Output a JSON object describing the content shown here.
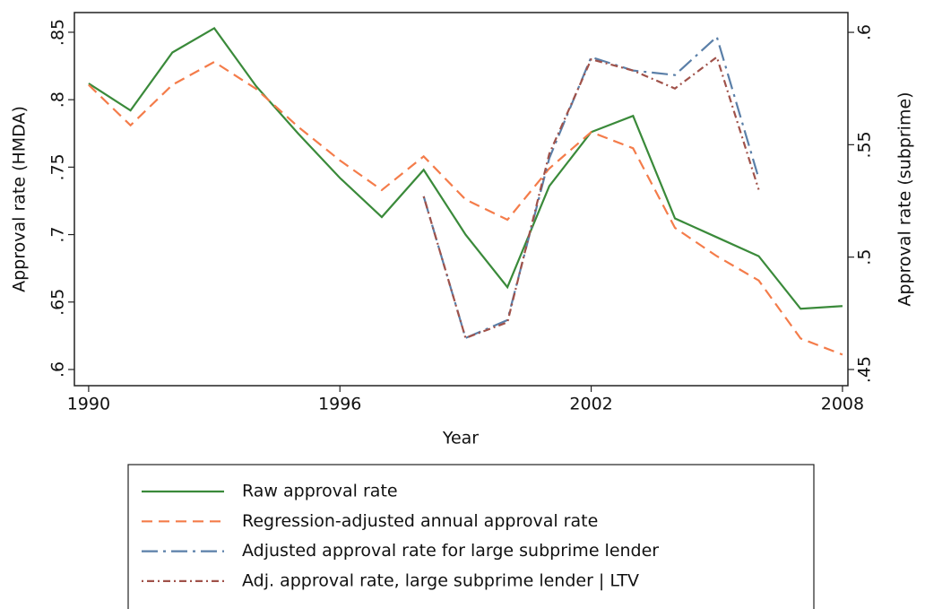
{
  "chart_data": {
    "type": "line",
    "x_label": "Year",
    "y_label": "Approval rate (HMDA)",
    "y2_label": "Approval rate (subprime)",
    "x": [
      1990,
      1991,
      1992,
      1993,
      1994,
      1995,
      1996,
      1997,
      1998,
      1999,
      2000,
      2001,
      2002,
      2003,
      2004,
      2005,
      2006,
      2007,
      2008
    ],
    "xlim": [
      1989.66,
      2008.13
    ],
    "xticks": [
      1990,
      1996,
      2002,
      2008
    ],
    "ylim": [
      0.588,
      0.8646
    ],
    "yticks": [
      {
        "value": 0.6,
        "label": ".6"
      },
      {
        "value": 0.65,
        "label": ".65"
      },
      {
        "value": 0.7,
        "label": ".7"
      },
      {
        "value": 0.75,
        "label": ".75"
      },
      {
        "value": 0.8,
        "label": ".8"
      },
      {
        "value": 0.85,
        "label": ".85"
      }
    ],
    "y2lim": [
      0.4428,
      0.6088
    ],
    "y2ticks": [
      {
        "value": 0.45,
        "label": ".45"
      },
      {
        "value": 0.5,
        "label": ".5"
      },
      {
        "value": 0.55,
        "label": ".55"
      },
      {
        "value": 0.6,
        "label": ".6"
      }
    ],
    "series": [
      {
        "name": "Raw approval rate",
        "color": "#3a8a3a",
        "dash": "none",
        "values": [
          0.812,
          0.792,
          0.835,
          0.853,
          0.81,
          0.775,
          0.742,
          0.713,
          0.748,
          0.7,
          0.661,
          0.736,
          0.776,
          0.788,
          0.712,
          0.698,
          0.684,
          0.645,
          0.647
        ]
      },
      {
        "name": "Regression-adjusted annual approval rate",
        "color": "#f47c4a",
        "dash": "12,7",
        "values": [
          0.811,
          0.781,
          0.811,
          0.828,
          0.808,
          0.78,
          0.755,
          0.733,
          0.758,
          0.726,
          0.711,
          0.749,
          0.776,
          0.764,
          0.705,
          0.684,
          0.666,
          0.623,
          0.611
        ]
      },
      {
        "name": "Adjusted approval rate for large subprime lender",
        "color": "#5a7fa8",
        "dash": "18,6,3,6",
        "axis": "y2",
        "values": [
          null,
          null,
          null,
          null,
          null,
          null,
          null,
          null,
          0.527,
          0.464,
          0.472,
          0.544,
          0.589,
          0.583,
          0.581,
          0.598,
          0.535,
          null,
          null
        ]
      },
      {
        "name": "Adj. approval rate, large subprime lender | LTV",
        "color": "#a0524a",
        "dash": "2,4,8,4",
        "axis": "y2",
        "values": [
          null,
          null,
          null,
          null,
          null,
          null,
          null,
          null,
          0.527,
          0.464,
          0.471,
          0.546,
          0.588,
          0.583,
          0.575,
          0.589,
          0.53,
          null,
          null
        ]
      }
    ]
  }
}
